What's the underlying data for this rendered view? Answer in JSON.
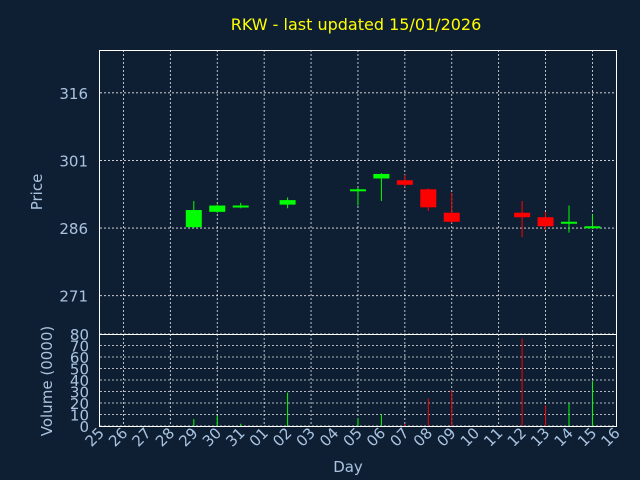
{
  "chart_data": {
    "type": "candlestick",
    "title": "RKW - last updated 15/01/2026",
    "xlabel": "Day",
    "price_panel": {
      "ylabel": "Price",
      "yticks": [
        271,
        286,
        301,
        316
      ],
      "ylim": [
        262.5,
        325.5
      ],
      "grid": true
    },
    "volume_panel": {
      "ylabel": "Volume (0000)",
      "yticks": [
        0,
        10,
        20,
        30,
        40,
        50,
        60,
        70,
        80
      ],
      "ylim": [
        0,
        80
      ],
      "grid": true
    },
    "x_ticks": [
      "25",
      "26",
      "27",
      "28",
      "29",
      "30",
      "31",
      "01",
      "02",
      "03",
      "04",
      "05",
      "06",
      "07",
      "08",
      "09",
      "10",
      "11",
      "12",
      "13",
      "14",
      "15",
      "16"
    ],
    "colors": {
      "up": "#00ff00",
      "down": "#ff0000",
      "title": "#ffff00",
      "axis": "#a9c3e0",
      "background": "#0f1f33"
    },
    "candles": [
      {
        "day": "29",
        "open": 286.2,
        "close": 290.0,
        "high": 292.0,
        "low": 286.0,
        "volume": 6
      },
      {
        "day": "30",
        "open": 289.6,
        "close": 291.0,
        "high": 291.2,
        "low": 289.4,
        "volume": 9
      },
      {
        "day": "31",
        "open": 290.6,
        "close": 291.0,
        "high": 291.6,
        "low": 290.4,
        "volume": 2
      },
      {
        "day": "02",
        "open": 291.2,
        "close": 292.2,
        "high": 292.8,
        "low": 290.4,
        "volume": 29
      },
      {
        "day": "05",
        "open": 294.2,
        "close": 294.6,
        "high": 295.0,
        "low": 291.0,
        "volume": 7
      },
      {
        "day": "06",
        "open": 297.0,
        "close": 298.0,
        "high": 298.2,
        "low": 292.0,
        "volume": 10
      },
      {
        "day": "07",
        "open": 296.6,
        "close": 295.6,
        "high": 297.8,
        "low": 295.2,
        "volume": 2
      },
      {
        "day": "08",
        "open": 294.6,
        "close": 290.6,
        "high": 294.8,
        "low": 289.8,
        "volume": 24
      },
      {
        "day": "09",
        "open": 289.4,
        "close": 287.4,
        "high": 293.8,
        "low": 287.2,
        "volume": 31
      },
      {
        "day": "12",
        "open": 289.4,
        "close": 288.4,
        "high": 292.0,
        "low": 284.0,
        "volume": 76
      },
      {
        "day": "13",
        "open": 288.4,
        "close": 286.4,
        "high": 289.6,
        "low": 285.6,
        "volume": 18
      },
      {
        "day": "14",
        "open": 287.2,
        "close": 287.4,
        "high": 291.0,
        "low": 285.0,
        "volume": 20
      },
      {
        "day": "15",
        "open": 286.0,
        "close": 286.4,
        "high": 289.0,
        "low": 285.8,
        "volume": 39
      }
    ]
  }
}
